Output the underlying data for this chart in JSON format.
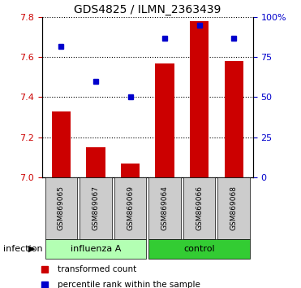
{
  "title": "GDS4825 / ILMN_2363439",
  "samples": [
    "GSM869065",
    "GSM869067",
    "GSM869069",
    "GSM869064",
    "GSM869066",
    "GSM869068"
  ],
  "red_values": [
    7.33,
    7.15,
    7.07,
    7.57,
    7.78,
    7.58
  ],
  "blue_values": [
    82,
    60,
    50,
    87,
    95,
    87
  ],
  "ylim_left": [
    7.0,
    7.8
  ],
  "ylim_right": [
    0,
    100
  ],
  "yticks_left": [
    7.0,
    7.2,
    7.4,
    7.6,
    7.8
  ],
  "yticks_right": [
    0,
    25,
    50,
    75,
    100
  ],
  "ytick_labels_right": [
    "0",
    "25",
    "50",
    "75",
    "100%"
  ],
  "bar_color": "#cc0000",
  "square_color": "#0000cc",
  "influenza_color": "#b3ffb3",
  "control_color": "#33cc33",
  "group_label": "infection",
  "bar_width": 0.55,
  "sample_box_color": "#cccccc",
  "left_tick_color": "#cc0000",
  "right_tick_color": "#0000cc",
  "group_spans": [
    {
      "name": "influenza A",
      "start": 0,
      "end": 2,
      "color": "#b3ffb3"
    },
    {
      "name": "control",
      "start": 3,
      "end": 5,
      "color": "#33cc33"
    }
  ]
}
